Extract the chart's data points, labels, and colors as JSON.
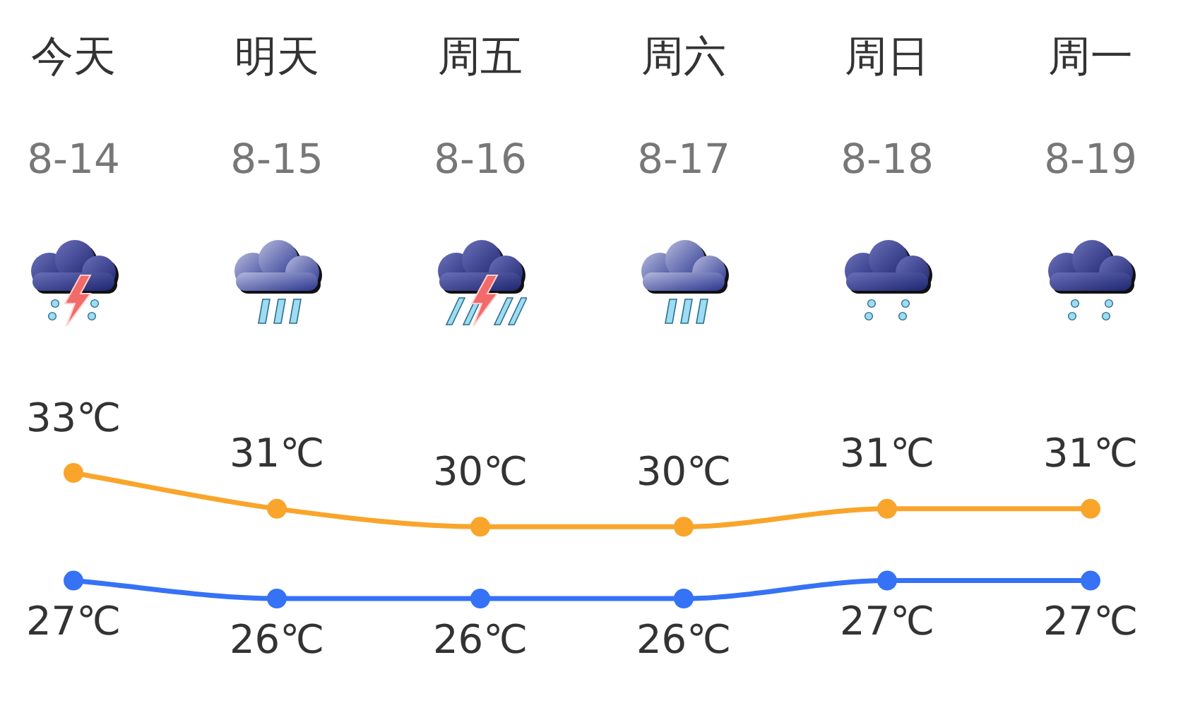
{
  "chart_data": {
    "type": "line",
    "categories": [
      "今天\n8-14",
      "明天\n8-15",
      "周五\n8-16",
      "周六\n8-17",
      "周日\n8-18",
      "周一\n8-19"
    ],
    "series": [
      {
        "color": "#f9a52b",
        "values": [
          33,
          31,
          30,
          30,
          31,
          31
        ],
        "value_labels": [
          "33℃",
          "31℃",
          "30℃",
          "30℃",
          "31℃",
          "31℃"
        ]
      },
      {
        "color": "#3572f5",
        "values": [
          27,
          26,
          26,
          26,
          27,
          27
        ],
        "value_labels": [
          "27℃",
          "26℃",
          "26℃",
          "26℃",
          "27℃",
          "27℃"
        ]
      }
    ],
    "tick_labels": "x",
    "marker": "circle",
    "legend": false
  }
}
